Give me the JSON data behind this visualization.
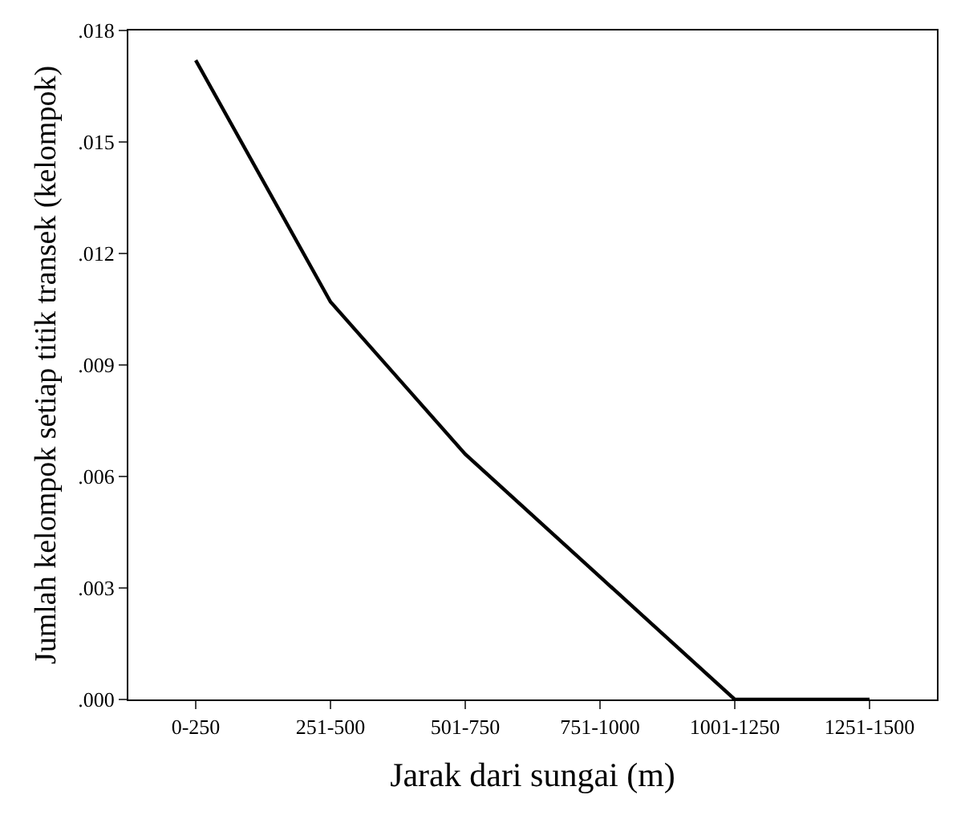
{
  "chart_data": {
    "type": "line",
    "xlabel": "Jarak dari sungai (m)",
    "ylabel": "Jumlah kelompok setiap titik transek (kelompok)",
    "categories": [
      "0-250",
      "251-500",
      "501-750",
      "751-1000",
      "1001-1250",
      "1251-1500"
    ],
    "series": [
      {
        "color": "#000000",
        "values": [
          0.0172,
          0.0107,
          0.0066,
          0.0033,
          0.0,
          0.0
        ]
      }
    ],
    "ylim": [
      0,
      0.018
    ],
    "yticks": [
      {
        "value": 0,
        "label": ".000"
      },
      {
        "value": 0.003,
        "label": ".003"
      },
      {
        "value": 0.006,
        "label": ".006"
      },
      {
        "value": 0.009,
        "label": ".009"
      },
      {
        "value": 0.012,
        "label": ".012"
      },
      {
        "value": 0.015,
        "label": ".015"
      },
      {
        "value": 0.018,
        "label": ".018"
      }
    ],
    "marker": "none",
    "line_style": "solid"
  }
}
